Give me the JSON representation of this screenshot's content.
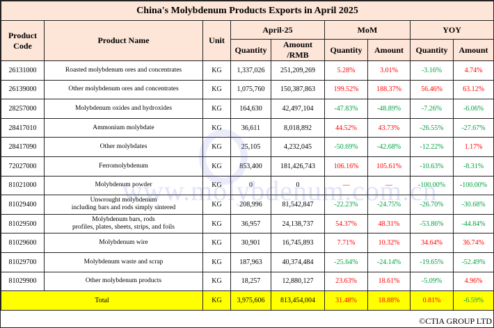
{
  "title": "China's Molybdenum Products Exports in April 2025",
  "headers": {
    "code": "Product Code",
    "name": "Product Name",
    "unit": "Unit",
    "period": "April-25",
    "mom": "MoM",
    "yoy": "YOY",
    "quantity": "Quantity",
    "amount_rmb": "Amount /RMB",
    "amount": "Amount"
  },
  "rows": [
    {
      "code": "26131000",
      "name": "Roasted molybdenum ores and concentrates",
      "unit": "KG",
      "qty": "1,337,026",
      "amt": "251,209,269",
      "mom_q": "5.28%",
      "mom_a": "3.01%",
      "yoy_q": "-3.16%",
      "yoy_a": "4.74%"
    },
    {
      "code": "26139000",
      "name": "Other molybdenum ores and concentrates",
      "unit": "KG",
      "qty": "1,075,760",
      "amt": "150,387,863",
      "mom_q": "199.52%",
      "mom_a": "188.37%",
      "yoy_q": "56.46%",
      "yoy_a": "63.12%"
    },
    {
      "code": "28257000",
      "name": "Molybdenum oxides and hydroxides",
      "unit": "KG",
      "qty": "164,630",
      "amt": "42,497,104",
      "mom_q": "-47.83%",
      "mom_a": "-48.89%",
      "yoy_q": "-7.26%",
      "yoy_a": "-6.06%"
    },
    {
      "code": "28417010",
      "name": "Ammonium molybdate",
      "unit": "KG",
      "qty": "36,611",
      "amt": "8,018,892",
      "mom_q": "44.52%",
      "mom_a": "43.73%",
      "yoy_q": "-26.55%",
      "yoy_a": "-27.67%"
    },
    {
      "code": "28417090",
      "name": "Other molybdates",
      "unit": "KG",
      "qty": "25,105",
      "amt": "4,232,045",
      "mom_q": "-50.69%",
      "mom_a": "-42.68%",
      "yoy_q": "-12.22%",
      "yoy_a": "1.17%"
    },
    {
      "code": "72027000",
      "name": "Ferromolybdenum",
      "unit": "KG",
      "qty": "853,400",
      "amt": "181,426,743",
      "mom_q": "106.16%",
      "mom_a": "105.61%",
      "yoy_q": "-10.63%",
      "yoy_a": "-8.31%"
    },
    {
      "code": "81021000",
      "name": "Molybdenum powder",
      "unit": "KG",
      "qty": "0",
      "amt": "0",
      "mom_q": "—",
      "mom_a": "—",
      "yoy_q": "-100.00%",
      "yoy_a": "-100.00%"
    },
    {
      "code": "81029400",
      "name": "Unwrought molybdenum\nincluding bars and rods simply sintered",
      "unit": "KG",
      "qty": "208,996",
      "amt": "81,542,847",
      "mom_q": "-22.23%",
      "mom_a": "-24.75%",
      "yoy_q": "-26.70%",
      "yoy_a": "-30.68%"
    },
    {
      "code": "81029500",
      "name": "Molybdenum bars, rods\nprofiles, plates, sheets, strips, and foils",
      "unit": "KG",
      "qty": "36,957",
      "amt": "24,138,737",
      "mom_q": "54.37%",
      "mom_a": "48.31%",
      "yoy_q": "-53.86%",
      "yoy_a": "-44.84%"
    },
    {
      "code": "81029600",
      "name": "Molybdenum wire",
      "unit": "KG",
      "qty": "30,901",
      "amt": "16,745,893",
      "mom_q": "7.71%",
      "mom_a": "10.32%",
      "yoy_q": "34.64%",
      "yoy_a": "36.74%"
    },
    {
      "code": "81029700",
      "name": "Molybdenum waste and scrap",
      "unit": "KG",
      "qty": "187,963",
      "amt": "40,374,484",
      "mom_q": "-25.64%",
      "mom_a": "-24.14%",
      "yoy_q": "-19.65%",
      "yoy_a": "-52.49%"
    },
    {
      "code": "81029900",
      "name": "Other molybdenum products",
      "unit": "KG",
      "qty": "18,257",
      "amt": "12,880,127",
      "mom_q": "23.63%",
      "mom_a": "18.61%",
      "yoy_q": "-5.09%",
      "yoy_a": "4.96%"
    }
  ],
  "total": {
    "label": "Total",
    "unit": "KG",
    "qty": "3,975,606",
    "amt": "813,454,004",
    "mom_q": "31.48%",
    "mom_a": "18.88%",
    "yoy_q": "0.81%",
    "yoy_a": "-6.59%"
  },
  "watermark": "www.molybdenum.com.cn",
  "footer": "©CTIA GROUP LTD",
  "colors": {
    "header_bg": "#fde5d8",
    "total_bg": "#ffff00",
    "increase": "#ff0000",
    "decrease": "#00a040"
  }
}
